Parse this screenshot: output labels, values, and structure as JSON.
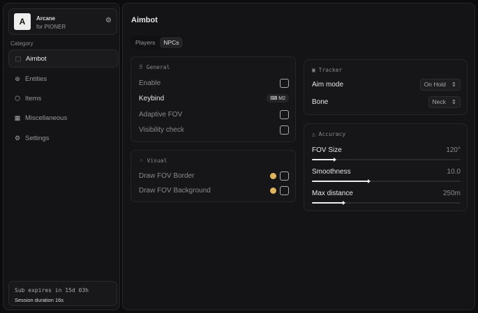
{
  "brand": {
    "logo": "A",
    "name": "Arcane",
    "sub": "for PIONER"
  },
  "sidebar": {
    "category_label": "Category",
    "items": [
      {
        "label": "Aimbot",
        "icon": "⬚",
        "active": true
      },
      {
        "label": "Entities",
        "icon": "⊛"
      },
      {
        "label": "Items",
        "icon": "⬡"
      },
      {
        "label": "Miscellaneous",
        "icon": "▦"
      },
      {
        "label": "Settings",
        "icon": "⚙"
      }
    ],
    "footer": {
      "sub": "Sub expires in 15d 03h",
      "session": "Session duration 16s"
    }
  },
  "main": {
    "title": "Aimbot",
    "tabs": [
      {
        "label": "Players"
      },
      {
        "label": "NPCs",
        "active": true
      }
    ]
  },
  "general": {
    "title": "General",
    "enable": "Enable",
    "keybind": "Keybind",
    "keybind_value": "M2",
    "adaptive": "Adaptive FOV",
    "visibility": "Visibility check"
  },
  "visual": {
    "title": "Visual",
    "border": "Draw FOV Border",
    "background": "Draw FOV Background",
    "color": "#e0b45a"
  },
  "tracker": {
    "title": "Tracker",
    "aim_mode": "Aim mode",
    "aim_mode_value": "On Hold",
    "bone": "Bone",
    "bone_value": "Neck"
  },
  "accuracy": {
    "title": "Accuracy",
    "sliders": [
      {
        "label": "FOV Size",
        "value": "120°",
        "fraction": 0.15
      },
      {
        "label": "Smoothness",
        "value": "10.0",
        "fraction": 0.38
      },
      {
        "label": "Max distance",
        "value": "250m",
        "fraction": 0.21
      }
    ]
  }
}
